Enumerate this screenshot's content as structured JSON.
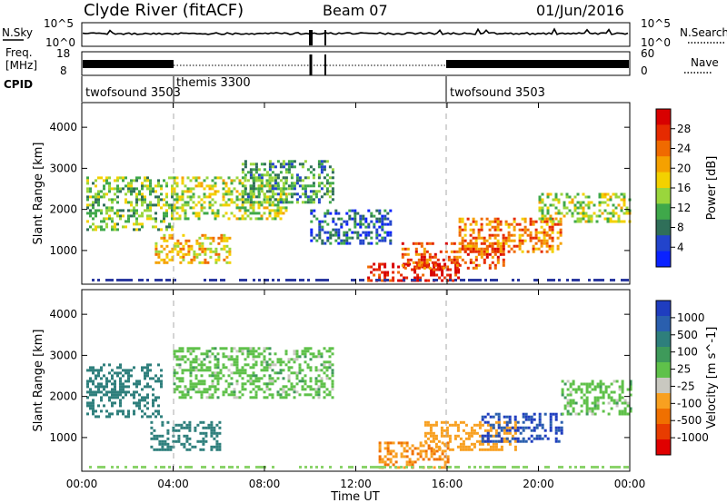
{
  "header": {
    "station": "Clyde River (fitACF)",
    "beam": "Beam 07",
    "date": "01/Jun/2016"
  },
  "noise_panel": {
    "left_label": "N.Sky",
    "left_ticks": [
      "10^5",
      "10^0"
    ],
    "right_ticks": [
      "10^5",
      "10^0"
    ],
    "right_label": "N.Search"
  },
  "freq_panel": {
    "left_label_1": "Freq.",
    "left_label_2": "[MHz]",
    "left_ticks": [
      "18",
      "8"
    ],
    "right_ticks": [
      "60",
      "0"
    ],
    "right_label": "Nave"
  },
  "cpid": {
    "label": "CPID",
    "segments": [
      {
        "name": "twofsound 3503",
        "start_h": 0
      },
      {
        "name": "themis 3300",
        "start_h": 4
      },
      {
        "name": "twofsound 3503",
        "start_h": 16
      }
    ]
  },
  "x_axis": {
    "ticks": [
      "00:00",
      "04:00",
      "08:00",
      "12:00",
      "16:00",
      "20:00",
      "00:00"
    ],
    "label": "Time UT"
  },
  "y_axis": {
    "label": "Slant Range [km]",
    "ticks": [
      "1000",
      "2000",
      "3000",
      "4000"
    ]
  },
  "power_colorbar": {
    "label": "Power [dB]",
    "ticks": [
      "4",
      "8",
      "12",
      "16",
      "20",
      "24",
      "28"
    ],
    "colors": [
      "#0a22ff",
      "#2244cc",
      "#2f6f59",
      "#3fa84a",
      "#9ad63c",
      "#f3d100",
      "#f5a100",
      "#f06a00",
      "#e62a00",
      "#d80000"
    ]
  },
  "velocity_colorbar": {
    "label": "Velocity [m s^-1]",
    "ticks": [
      "1000",
      "500",
      "100",
      "25",
      "-25",
      "-100",
      "-500",
      "-1000"
    ],
    "colors": [
      "#1f3dbf",
      "#2a5fae",
      "#2e7f7c",
      "#3e9a5a",
      "#5fc14a",
      "#c9c8c0",
      "#f8a020",
      "#f07000",
      "#e83c00",
      "#e00000"
    ]
  },
  "chart_data": {
    "type": "heatmap",
    "title": "Clyde River (fitACF) Beam 07 01/Jun/2016",
    "xlabel": "Time UT",
    "ylabel": "Slant Range [km]",
    "xlim_hours": [
      0,
      24
    ],
    "ylim_km": [
      180,
      4600
    ],
    "panels": [
      {
        "name": "Power [dB]",
        "value_range": [
          0,
          30
        ],
        "echo_regions": [
          {
            "t": [
              0.2,
              4.0
            ],
            "r": [
              1500,
              2800
            ],
            "v": 12
          },
          {
            "t": [
              3.2,
              6.5
            ],
            "r": [
              700,
              1400
            ],
            "v": 18
          },
          {
            "t": [
              4.0,
              9.0
            ],
            "r": [
              1800,
              2800
            ],
            "v": 14
          },
          {
            "t": [
              7.0,
              11.0
            ],
            "r": [
              2200,
              3200
            ],
            "v": 10
          },
          {
            "t": [
              10.0,
              13.5
            ],
            "r": [
              1200,
              2000
            ],
            "v": 6
          },
          {
            "t": [
              12.5,
              16.5
            ],
            "r": [
              300,
              700
            ],
            "v": 28
          },
          {
            "t": [
              14.0,
              18.5
            ],
            "r": [
              600,
              1200
            ],
            "v": 24
          },
          {
            "t": [
              16.5,
              21.0
            ],
            "r": [
              1000,
              1800
            ],
            "v": 22
          },
          {
            "t": [
              20.0,
              24.0
            ],
            "r": [
              1700,
              2400
            ],
            "v": 14
          }
        ]
      },
      {
        "name": "Velocity [m s^-1]",
        "value_range": [
          -1000,
          1000
        ],
        "echo_regions": [
          {
            "t": [
              0.2,
              3.5
            ],
            "r": [
              1500,
              2800
            ],
            "v": 200
          },
          {
            "t": [
              3.0,
              6.0
            ],
            "r": [
              700,
              1400
            ],
            "v": 100
          },
          {
            "t": [
              4.0,
              11.0
            ],
            "r": [
              2000,
              3200
            ],
            "v": 0
          },
          {
            "t": [
              13.0,
              16.0
            ],
            "r": [
              300,
              900
            ],
            "v": -300
          },
          {
            "t": [
              15.0,
              19.0
            ],
            "r": [
              700,
              1400
            ],
            "v": -150
          },
          {
            "t": [
              17.5,
              21.0
            ],
            "r": [
              900,
              1600
            ],
            "v": 800
          },
          {
            "t": [
              21.0,
              24.0
            ],
            "r": [
              1600,
              2400
            ],
            "v": 0
          }
        ]
      }
    ]
  }
}
